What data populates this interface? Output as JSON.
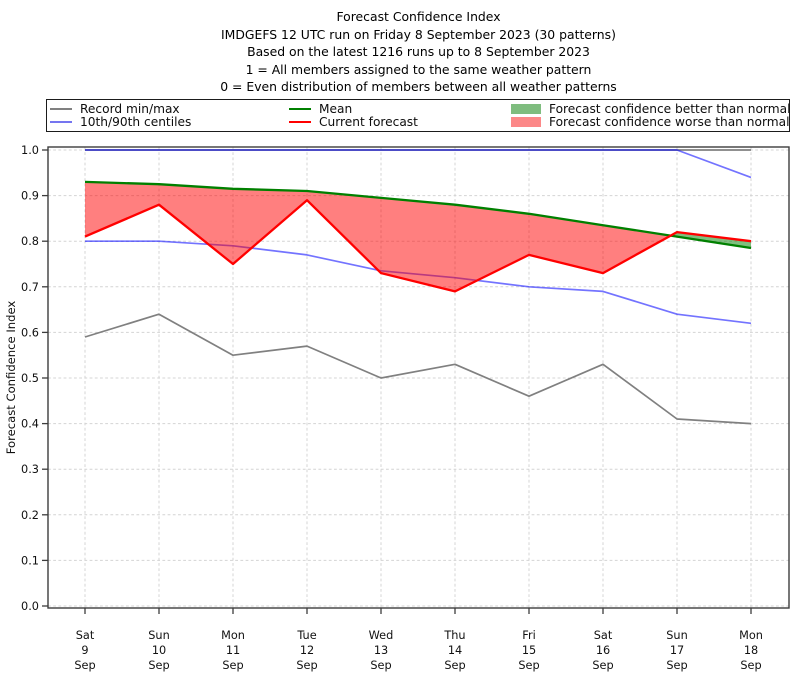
{
  "header": {
    "title_lines": [
      "Forecast Confidence Index",
      "IMDGEFS 12 UTC run on Friday 8 September 2023 (30 patterns)",
      "Based on the latest 1216 runs up to 8 September 2023",
      "1 = All members assigned to the same weather pattern",
      "0 = Even distribution of members between all weather patterns"
    ]
  },
  "legend": {
    "items": [
      {
        "label": "Record min/max",
        "marker": "line",
        "color": "#808080"
      },
      {
        "label": "10th/90th centiles",
        "marker": "line",
        "color": "#7575f0"
      },
      {
        "label": "Mean",
        "marker": "line",
        "color": "#008000"
      },
      {
        "label": "Current forecast",
        "marker": "line",
        "color": "#ff0000"
      },
      {
        "label": "Forecast confidence better than normal",
        "marker": "patch",
        "color": "#7fbd7f"
      },
      {
        "label": "Forecast confidence worse than normal",
        "marker": "patch",
        "color": "#fc8888"
      }
    ]
  },
  "chart_data": {
    "type": "line",
    "title": "Forecast Confidence Index",
    "xlabel": "",
    "ylabel": "Forecast Confidence Index",
    "ylim": [
      0.0,
      1.0
    ],
    "yticks": [
      0.0,
      0.1,
      0.2,
      0.3,
      0.4,
      0.5,
      0.6,
      0.7,
      0.8,
      0.9,
      1.0
    ],
    "grid": true,
    "legend_position": "top",
    "categories": [
      [
        "Sat",
        "9",
        "Sep"
      ],
      [
        "Sun",
        "10",
        "Sep"
      ],
      [
        "Mon",
        "11",
        "Sep"
      ],
      [
        "Tue",
        "12",
        "Sep"
      ],
      [
        "Wed",
        "13",
        "Sep"
      ],
      [
        "Thu",
        "14",
        "Sep"
      ],
      [
        "Fri",
        "15",
        "Sep"
      ],
      [
        "Sat",
        "16",
        "Sep"
      ],
      [
        "Sun",
        "17",
        "Sep"
      ],
      [
        "Mon",
        "18",
        "Sep"
      ]
    ],
    "series": [
      {
        "id": "record-max",
        "name": "Record max",
        "color": "#808080",
        "opacity": 1,
        "width": 1.7,
        "layer": 0,
        "values": [
          1.0,
          1.0,
          1.0,
          1.0,
          1.0,
          1.0,
          1.0,
          1.0,
          1.0,
          1.0
        ]
      },
      {
        "id": "record-min",
        "name": "Record min",
        "color": "#808080",
        "opacity": 1,
        "width": 1.7,
        "layer": 0,
        "values": [
          0.59,
          0.64,
          0.55,
          0.57,
          0.5,
          0.53,
          0.46,
          0.53,
          0.41,
          0.4
        ]
      },
      {
        "id": "centile-90th",
        "name": "90th centile",
        "color": "#0000ff",
        "opacity": 0.55,
        "width": 1.7,
        "layer": 0,
        "values": [
          1.0,
          1.0,
          1.0,
          1.0,
          1.0,
          1.0,
          1.0,
          1.0,
          1.0,
          0.94
        ]
      },
      {
        "id": "centile-10th",
        "name": "10th centile",
        "color": "#0000ff",
        "opacity": 0.55,
        "width": 1.7,
        "layer": 0,
        "values": [
          0.8,
          0.8,
          0.79,
          0.77,
          0.735,
          0.72,
          0.7,
          0.69,
          0.64,
          0.62
        ]
      },
      {
        "id": "mean",
        "name": "Mean",
        "color": "#008000",
        "opacity": 1,
        "width": 2.3,
        "layer": 1,
        "values": [
          0.93,
          0.925,
          0.915,
          0.91,
          0.895,
          0.88,
          0.86,
          0.835,
          0.81,
          0.785
        ]
      },
      {
        "id": "current-forecast",
        "name": "Current forecast",
        "color": "#ff0000",
        "opacity": 1,
        "width": 2.3,
        "layer": 1,
        "values": [
          0.81,
          0.88,
          0.75,
          0.89,
          0.73,
          0.69,
          0.77,
          0.73,
          0.82,
          0.8
        ]
      }
    ],
    "fills": [
      {
        "id": "worse-than-normal",
        "label": "Forecast confidence worse than normal",
        "upper": "Mean",
        "lower": "Current forecast",
        "color": "rgba(255,0,0,0.5)"
      },
      {
        "id": "better-than-normal",
        "label": "Forecast confidence better than normal",
        "upper": "Current forecast",
        "lower": "Mean",
        "color": "rgba(0,128,0,0.5)"
      }
    ]
  }
}
